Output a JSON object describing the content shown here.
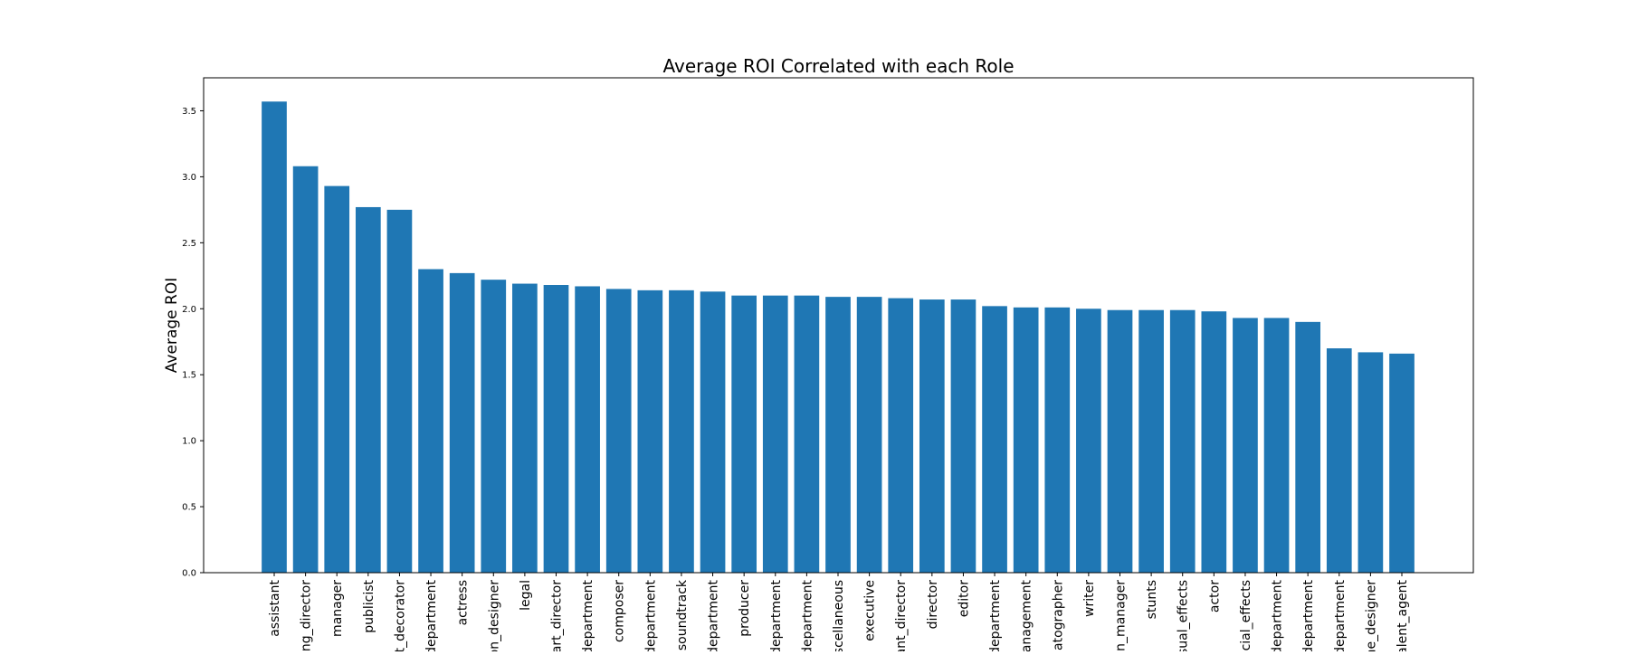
{
  "chart_data": {
    "type": "bar",
    "title": "Average ROI Correlated with each Role",
    "xlabel": "",
    "ylabel": "Average ROI",
    "categories": [
      "assistant",
      "ing_director",
      "manager",
      "publicist",
      "t_decorator",
      "department",
      "actress",
      "on_designer",
      "legal",
      "art_director",
      "department",
      "composer",
      "department",
      "soundtrack",
      "department",
      "producer",
      "department",
      "department",
      "scellaneous",
      "executive",
      "ant_director",
      "director",
      "editor",
      "department",
      "anagement",
      "atographer",
      "writer",
      "n_manager",
      "stunts",
      "sual_effects",
      "actor",
      "cial_effects",
      "department",
      "department",
      "department",
      "ne_designer",
      "alent_agent"
    ],
    "values": [
      3.57,
      3.08,
      2.93,
      2.77,
      2.75,
      2.3,
      2.27,
      2.22,
      2.19,
      2.18,
      2.17,
      2.15,
      2.14,
      2.14,
      2.13,
      2.1,
      2.1,
      2.1,
      2.09,
      2.09,
      2.08,
      2.07,
      2.07,
      2.02,
      2.01,
      2.01,
      2.0,
      1.99,
      1.99,
      1.99,
      1.98,
      1.93,
      1.93,
      1.9,
      1.7,
      1.67,
      1.66
    ],
    "ylim": [
      0,
      3.75
    ],
    "yticks": [
      0.0,
      0.5,
      1.0,
      1.5,
      2.0,
      2.5,
      3.0,
      3.5
    ],
    "ytick_labels": [
      "0.0",
      "0.5",
      "1.0",
      "1.5",
      "2.0",
      "2.5",
      "3.0",
      "3.5"
    ],
    "bar_color": "#1f77b4",
    "grid": false,
    "legend": "none"
  }
}
